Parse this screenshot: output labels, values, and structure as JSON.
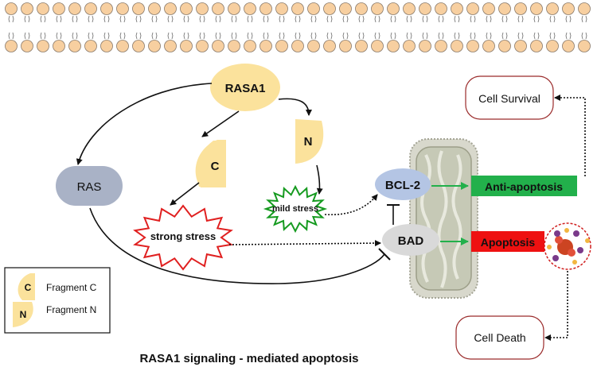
{
  "nodes": {
    "rasa1": "RASA1",
    "ras": "RAS",
    "fragment_c": "C",
    "fragment_n": "N",
    "mild_stress": "mild stress",
    "strong_stress": "strong stress",
    "bcl2": "BCL-2",
    "bad": "BAD",
    "anti_apoptosis": "Anti-apoptosis",
    "apoptosis": "Apoptosis",
    "cell_survival": "Cell Survival",
    "cell_death": "Cell Death"
  },
  "legend": {
    "items": [
      {
        "symbol": "C",
        "label": "Fragment C"
      },
      {
        "symbol": "N",
        "label": "Fragment N"
      }
    ]
  },
  "caption": "RASA1 signaling - mediated apoptosis",
  "colors": {
    "fragment_fill": "#fbe29c",
    "gray_node": "#a9b2c6",
    "bcl2_fill": "#b4c5e4",
    "bad_fill": "#d9d9d9",
    "anti_apoptosis": "#22b04b",
    "apoptosis": "#ee1111",
    "arrow_green": "#22b04b",
    "mild_star": "#159a1f",
    "strong_star": "#e02020",
    "box_border": "#9a2a2a",
    "membrane_head": "#f7cfa0"
  }
}
